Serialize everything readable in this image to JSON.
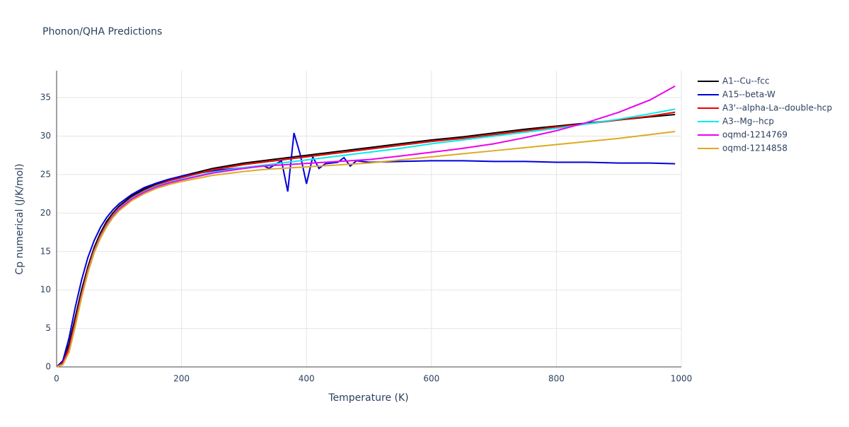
{
  "chart_data": {
    "type": "line",
    "title": "Phonon/QHA Predictions",
    "x_label": "Temperature (K)",
    "y_label": "Cp numerical (J/K/mol)",
    "x": [
      0,
      10,
      20,
      30,
      40,
      50,
      60,
      70,
      80,
      90,
      100,
      120,
      140,
      160,
      180,
      200,
      250,
      300,
      330,
      340,
      350,
      360,
      370,
      380,
      390,
      400,
      410,
      420,
      430,
      440,
      450,
      460,
      470,
      480,
      500,
      550,
      600,
      650,
      700,
      750,
      800,
      850,
      900,
      950,
      990
    ],
    "series": [
      {
        "name": "A1--Cu--fcc",
        "color": "#000000",
        "values": [
          0,
          0.6,
          3,
          6.5,
          10,
          13,
          15.5,
          17.4,
          18.9,
          20,
          20.9,
          22.2,
          23.1,
          23.8,
          24.3,
          24.8,
          25.8,
          26.5,
          26.8,
          26.9,
          27.0,
          27.1,
          27.2,
          27.3,
          27.4,
          27.5,
          27.6,
          27.7,
          27.8,
          27.9,
          28.0,
          28.1,
          28.2,
          28.3,
          28.5,
          29.0,
          29.5,
          29.9,
          30.4,
          30.9,
          31.3,
          31.7,
          32.1,
          32.5,
          32.8
        ]
      },
      {
        "name": "A15--beta-W",
        "color": "#0000dd",
        "values": [
          0,
          0.8,
          3.8,
          7.8,
          11.3,
          14.2,
          16.4,
          18.1,
          19.4,
          20.4,
          21.2,
          22.4,
          23.3,
          23.9,
          24.4,
          24.8,
          25.5,
          25.9,
          26.2,
          25.8,
          26.3,
          26.8,
          22.8,
          30.4,
          27.6,
          23.8,
          27.3,
          25.8,
          26.4,
          26.5,
          26.6,
          27.2,
          26.1,
          26.8,
          26.6,
          26.7,
          26.8,
          26.8,
          26.7,
          26.7,
          26.6,
          26.6,
          26.5,
          26.5,
          26.4
        ]
      },
      {
        "name": "A3'--alpha-La--double-hcp",
        "color": "#ee0000",
        "values": [
          0,
          0.5,
          2.5,
          6,
          9.5,
          12.7,
          15.2,
          17.1,
          18.6,
          19.8,
          20.7,
          22.0,
          22.9,
          23.6,
          24.2,
          24.6,
          25.6,
          26.3,
          26.6,
          26.7,
          26.8,
          26.9,
          27.0,
          27.1,
          27.2,
          27.3,
          27.4,
          27.5,
          27.6,
          27.7,
          27.8,
          27.9,
          28.0,
          28.1,
          28.3,
          28.8,
          29.3,
          29.7,
          30.2,
          30.7,
          31.2,
          31.6,
          32.1,
          32.6,
          33.1
        ]
      },
      {
        "name": "A3--Mg--hcp",
        "color": "#00eeee",
        "values": [
          0,
          0.3,
          2,
          5.5,
          9.2,
          12.4,
          15,
          16.9,
          18.4,
          19.6,
          20.6,
          21.9,
          22.8,
          23.5,
          24.0,
          24.4,
          25.3,
          25.9,
          26.2,
          26.3,
          26.4,
          26.5,
          26.6,
          26.7,
          26.8,
          26.9,
          27.0,
          27.1,
          27.2,
          27.3,
          27.4,
          27.5,
          27.6,
          27.7,
          27.9,
          28.4,
          29.0,
          29.5,
          30.0,
          30.5,
          31.0,
          31.6,
          32.2,
          32.9,
          33.5
        ]
      },
      {
        "name": "oqmd-1214769",
        "color": "#ee00ee",
        "values": [
          0,
          0.3,
          2,
          5.4,
          9.1,
          12.3,
          14.9,
          16.8,
          18.3,
          19.5,
          20.5,
          21.8,
          22.7,
          23.4,
          23.9,
          24.3,
          25.2,
          25.8,
          26.1,
          26.15,
          26.2,
          26.25,
          26.3,
          26.35,
          26.4,
          26.45,
          26.5,
          26.55,
          26.6,
          26.65,
          26.7,
          26.75,
          26.8,
          26.85,
          26.95,
          27.4,
          27.9,
          28.4,
          29.0,
          29.8,
          30.7,
          31.8,
          33.1,
          34.7,
          36.5
        ]
      },
      {
        "name": "oqmd-1214858",
        "color": "#ddaa22",
        "values": [
          0,
          0.3,
          1.9,
          5.3,
          9,
          12.2,
          14.8,
          16.7,
          18.2,
          19.4,
          20.3,
          21.6,
          22.5,
          23.2,
          23.7,
          24.1,
          24.9,
          25.4,
          25.65,
          25.7,
          25.75,
          25.8,
          25.85,
          25.9,
          25.95,
          26.0,
          26.05,
          26.1,
          26.15,
          26.2,
          26.25,
          26.3,
          26.35,
          26.4,
          26.5,
          26.9,
          27.3,
          27.7,
          28.1,
          28.5,
          28.9,
          29.3,
          29.7,
          30.2,
          30.6
        ]
      }
    ],
    "xlim": [
      0,
      1000
    ],
    "xticks": [
      0,
      200,
      400,
      600,
      800,
      1000
    ],
    "ylim": [
      0,
      38.5
    ],
    "yticks": [
      0,
      5,
      10,
      15,
      20,
      25,
      30,
      35
    ],
    "grid": true
  }
}
